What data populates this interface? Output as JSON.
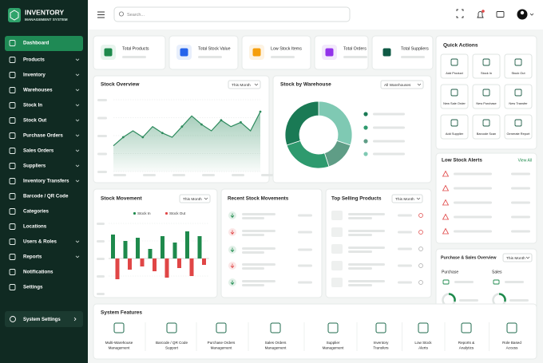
{
  "brand": {
    "title": "INVENTORY",
    "subtitle": "MANAGEMENT SYSTEM"
  },
  "nav": {
    "items": [
      "Dashboard",
      "Products",
      "Inventory",
      "Warehouses",
      "Stock In",
      "Stock Out",
      "Purchase Orders",
      "Sales Orders",
      "Suppliers",
      "Inventory Transfers",
      "Barcode / QR Code",
      "Categories",
      "Locations",
      "Users & Roles",
      "Reports",
      "Notifications",
      "Settings"
    ],
    "footer": "System Settings"
  },
  "search_placeholder": "Search...",
  "stats": [
    "Total Products",
    "Total Stock Value",
    "Low Stock Items",
    "Total Orders",
    "Total Suppliers"
  ],
  "stock_overview": {
    "title": "Stock Overview",
    "filter": "This Month",
    "color": "#2e8b5e",
    "values": [
      22,
      30,
      36,
      30,
      40,
      34,
      30,
      40,
      50,
      42,
      36,
      46,
      40,
      44,
      36,
      54
    ]
  },
  "stock_by_warehouse": {
    "title": "Stock by Warehouse",
    "filter": "All Warehouses",
    "values": [
      30,
      15,
      25,
      30
    ],
    "colors": [
      "#7fc9b3",
      "#5f9d86",
      "#2e9a6e",
      "#1a7a55"
    ]
  },
  "quick_actions": {
    "title": "Quick Actions",
    "items": [
      "Add Product",
      "Stock In",
      "Stock Out",
      "New Sale Order",
      "New Purchase",
      "New Transfer",
      "Add Supplier",
      "Barcode Scan",
      "Generate Report"
    ]
  },
  "low_stock_alerts": {
    "title": "Low Stock Alerts",
    "link": "View All"
  },
  "purchase_sales": {
    "title": "Purchase & Sales Overview",
    "filter": "This Month",
    "labels": [
      "Purchase",
      "Sales"
    ]
  },
  "stock_movement": {
    "title": "Stock Movement",
    "filter": "This Month",
    "series": [
      {
        "name": "Stock In",
        "color": "#1e8a4c",
        "values": [
          30,
          22,
          26,
          12,
          28,
          20,
          34,
          28
        ]
      },
      {
        "name": "Stock Out",
        "color": "#e04646",
        "values": [
          26,
          14,
          10,
          16,
          24,
          12,
          22,
          8
        ]
      }
    ]
  },
  "recent_movements": {
    "title": "Recent Stock Movements"
  },
  "top_selling": {
    "title": "Top Selling Products",
    "filter": "This Month"
  },
  "features": {
    "title": "System Features",
    "items": [
      [
        "Multi-Warehouse",
        "Management"
      ],
      [
        "Barcode / QR Code",
        "Support"
      ],
      [
        "Purchase Orders",
        "Management"
      ],
      [
        "Sales Orders",
        "Management"
      ],
      [
        "Supplier",
        "Management"
      ],
      [
        "Inventory",
        "Transfers"
      ],
      [
        "Low Stock",
        "Alerts"
      ],
      [
        "Reports &",
        "Analytics"
      ],
      [
        "Role Based",
        "Access"
      ]
    ]
  }
}
